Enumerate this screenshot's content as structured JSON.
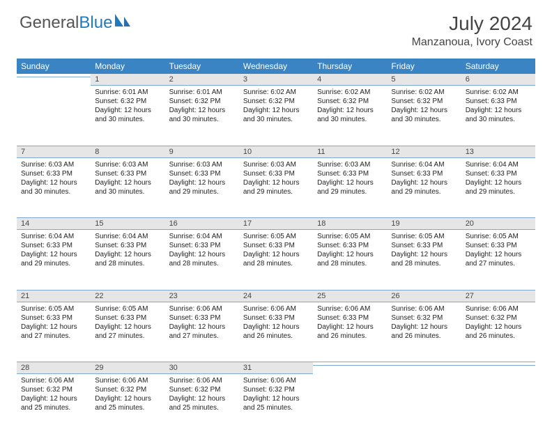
{
  "brand": {
    "part1": "General",
    "part2": "Blue"
  },
  "title": "July 2024",
  "location": "Manzanoua, Ivory Coast",
  "weekdays": [
    "Sunday",
    "Monday",
    "Tuesday",
    "Wednesday",
    "Thursday",
    "Friday",
    "Saturday"
  ],
  "colors": {
    "header_bg": "#3a84c4",
    "header_text": "#ffffff",
    "daynum_bg": "#e6e6e6",
    "rule": "#7aa9d4",
    "brand_blue": "#2179c0",
    "text": "#222222"
  },
  "weeks": [
    [
      {
        "n": "",
        "sr": "",
        "ss": "",
        "dl": ""
      },
      {
        "n": "1",
        "sr": "Sunrise: 6:01 AM",
        "ss": "Sunset: 6:32 PM",
        "dl": "Daylight: 12 hours and 30 minutes."
      },
      {
        "n": "2",
        "sr": "Sunrise: 6:01 AM",
        "ss": "Sunset: 6:32 PM",
        "dl": "Daylight: 12 hours and 30 minutes."
      },
      {
        "n": "3",
        "sr": "Sunrise: 6:02 AM",
        "ss": "Sunset: 6:32 PM",
        "dl": "Daylight: 12 hours and 30 minutes."
      },
      {
        "n": "4",
        "sr": "Sunrise: 6:02 AM",
        "ss": "Sunset: 6:32 PM",
        "dl": "Daylight: 12 hours and 30 minutes."
      },
      {
        "n": "5",
        "sr": "Sunrise: 6:02 AM",
        "ss": "Sunset: 6:32 PM",
        "dl": "Daylight: 12 hours and 30 minutes."
      },
      {
        "n": "6",
        "sr": "Sunrise: 6:02 AM",
        "ss": "Sunset: 6:33 PM",
        "dl": "Daylight: 12 hours and 30 minutes."
      }
    ],
    [
      {
        "n": "7",
        "sr": "Sunrise: 6:03 AM",
        "ss": "Sunset: 6:33 PM",
        "dl": "Daylight: 12 hours and 30 minutes."
      },
      {
        "n": "8",
        "sr": "Sunrise: 6:03 AM",
        "ss": "Sunset: 6:33 PM",
        "dl": "Daylight: 12 hours and 30 minutes."
      },
      {
        "n": "9",
        "sr": "Sunrise: 6:03 AM",
        "ss": "Sunset: 6:33 PM",
        "dl": "Daylight: 12 hours and 29 minutes."
      },
      {
        "n": "10",
        "sr": "Sunrise: 6:03 AM",
        "ss": "Sunset: 6:33 PM",
        "dl": "Daylight: 12 hours and 29 minutes."
      },
      {
        "n": "11",
        "sr": "Sunrise: 6:03 AM",
        "ss": "Sunset: 6:33 PM",
        "dl": "Daylight: 12 hours and 29 minutes."
      },
      {
        "n": "12",
        "sr": "Sunrise: 6:04 AM",
        "ss": "Sunset: 6:33 PM",
        "dl": "Daylight: 12 hours and 29 minutes."
      },
      {
        "n": "13",
        "sr": "Sunrise: 6:04 AM",
        "ss": "Sunset: 6:33 PM",
        "dl": "Daylight: 12 hours and 29 minutes."
      }
    ],
    [
      {
        "n": "14",
        "sr": "Sunrise: 6:04 AM",
        "ss": "Sunset: 6:33 PM",
        "dl": "Daylight: 12 hours and 29 minutes."
      },
      {
        "n": "15",
        "sr": "Sunrise: 6:04 AM",
        "ss": "Sunset: 6:33 PM",
        "dl": "Daylight: 12 hours and 28 minutes."
      },
      {
        "n": "16",
        "sr": "Sunrise: 6:04 AM",
        "ss": "Sunset: 6:33 PM",
        "dl": "Daylight: 12 hours and 28 minutes."
      },
      {
        "n": "17",
        "sr": "Sunrise: 6:05 AM",
        "ss": "Sunset: 6:33 PM",
        "dl": "Daylight: 12 hours and 28 minutes."
      },
      {
        "n": "18",
        "sr": "Sunrise: 6:05 AM",
        "ss": "Sunset: 6:33 PM",
        "dl": "Daylight: 12 hours and 28 minutes."
      },
      {
        "n": "19",
        "sr": "Sunrise: 6:05 AM",
        "ss": "Sunset: 6:33 PM",
        "dl": "Daylight: 12 hours and 28 minutes."
      },
      {
        "n": "20",
        "sr": "Sunrise: 6:05 AM",
        "ss": "Sunset: 6:33 PM",
        "dl": "Daylight: 12 hours and 27 minutes."
      }
    ],
    [
      {
        "n": "21",
        "sr": "Sunrise: 6:05 AM",
        "ss": "Sunset: 6:33 PM",
        "dl": "Daylight: 12 hours and 27 minutes."
      },
      {
        "n": "22",
        "sr": "Sunrise: 6:05 AM",
        "ss": "Sunset: 6:33 PM",
        "dl": "Daylight: 12 hours and 27 minutes."
      },
      {
        "n": "23",
        "sr": "Sunrise: 6:06 AM",
        "ss": "Sunset: 6:33 PM",
        "dl": "Daylight: 12 hours and 27 minutes."
      },
      {
        "n": "24",
        "sr": "Sunrise: 6:06 AM",
        "ss": "Sunset: 6:33 PM",
        "dl": "Daylight: 12 hours and 26 minutes."
      },
      {
        "n": "25",
        "sr": "Sunrise: 6:06 AM",
        "ss": "Sunset: 6:33 PM",
        "dl": "Daylight: 12 hours and 26 minutes."
      },
      {
        "n": "26",
        "sr": "Sunrise: 6:06 AM",
        "ss": "Sunset: 6:32 PM",
        "dl": "Daylight: 12 hours and 26 minutes."
      },
      {
        "n": "27",
        "sr": "Sunrise: 6:06 AM",
        "ss": "Sunset: 6:32 PM",
        "dl": "Daylight: 12 hours and 26 minutes."
      }
    ],
    [
      {
        "n": "28",
        "sr": "Sunrise: 6:06 AM",
        "ss": "Sunset: 6:32 PM",
        "dl": "Daylight: 12 hours and 25 minutes."
      },
      {
        "n": "29",
        "sr": "Sunrise: 6:06 AM",
        "ss": "Sunset: 6:32 PM",
        "dl": "Daylight: 12 hours and 25 minutes."
      },
      {
        "n": "30",
        "sr": "Sunrise: 6:06 AM",
        "ss": "Sunset: 6:32 PM",
        "dl": "Daylight: 12 hours and 25 minutes."
      },
      {
        "n": "31",
        "sr": "Sunrise: 6:06 AM",
        "ss": "Sunset: 6:32 PM",
        "dl": "Daylight: 12 hours and 25 minutes."
      },
      {
        "n": "",
        "sr": "",
        "ss": "",
        "dl": ""
      },
      {
        "n": "",
        "sr": "",
        "ss": "",
        "dl": ""
      },
      {
        "n": "",
        "sr": "",
        "ss": "",
        "dl": ""
      }
    ]
  ]
}
